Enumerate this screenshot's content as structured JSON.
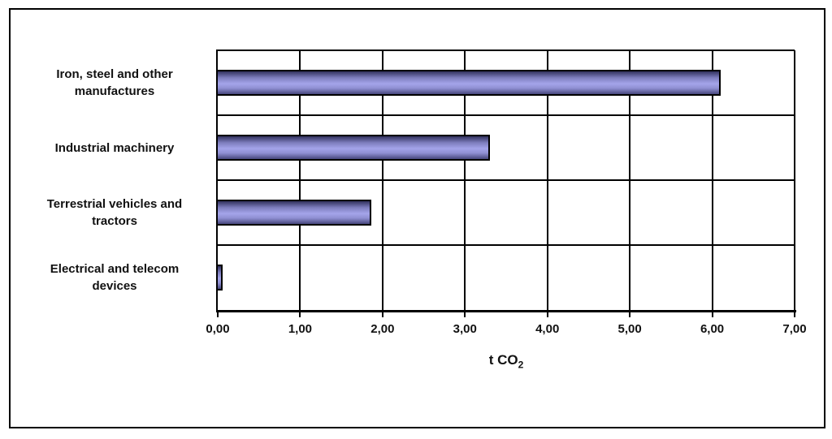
{
  "chart_data": {
    "type": "bar",
    "orientation": "horizontal",
    "title": "",
    "categories": [
      "Iron, steel and other manufactures",
      "Industrial machinery",
      "Terrestrial vehicles and tractors",
      "Electrical and telecom devices"
    ],
    "category_display_lines": [
      "Iron, steel and other\nmanufactures",
      "Industrial machinery",
      "Terrestrial vehicles and\ntractors",
      "Electrical and telecom\ndevices"
    ],
    "values": [
      6.1,
      3.3,
      1.86,
      0.06
    ],
    "xlabel": "t CO2",
    "xlabel_text": "t CO",
    "xlabel_subscript": "2",
    "xlim": [
      0,
      7
    ],
    "xtick_labels": [
      "0,00",
      "1,00",
      "2,00",
      "3,00",
      "4,00",
      "5,00",
      "6,00",
      "7,00"
    ],
    "grid": true,
    "legend": false,
    "colors": {
      "bar_gradient_top": "#31315e",
      "bar_gradient_upper": "#7d7dbd",
      "bar_gradient_light": "#a4a4ea",
      "bar_gradient_lower": "#8f8fd2",
      "bar_gradient_bottom": "#47477c",
      "bar_border": "#000000",
      "axis": "#000000",
      "text": "#111111",
      "background": "#ffffff"
    }
  }
}
